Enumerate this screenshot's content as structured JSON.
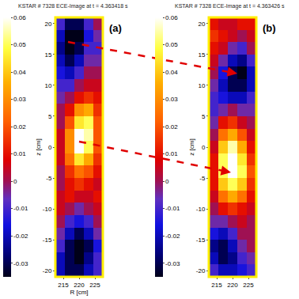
{
  "chart_data": [
    {
      "type": "heatmap",
      "title": "KSTAR # 7328 ECE-Image at t = 4.363418 s",
      "xlabel": "R [cm]",
      "ylabel": "z [cm]",
      "annotations": [
        "(a)"
      ],
      "x": [
        214,
        217,
        220,
        223,
        226
      ],
      "y": [
        -20,
        -18,
        -16,
        -14,
        -12,
        -10,
        -8,
        -6,
        -4,
        -2,
        0,
        2,
        4,
        6,
        8,
        10,
        12,
        14,
        16,
        18,
        20
      ],
      "cells": [
        [
          -0.02,
          -0.03,
          -0.03,
          -0.02,
          -0.01
        ],
        [
          -0.02,
          -0.03,
          -0.035,
          -0.025,
          -0.01
        ],
        [
          -0.01,
          -0.03,
          -0.035,
          -0.03,
          -0.015
        ],
        [
          -0.005,
          -0.02,
          -0.03,
          -0.02,
          -0.005
        ],
        [
          0.0,
          -0.01,
          -0.015,
          -0.01,
          0.0
        ],
        [
          0.005,
          0.0,
          -0.005,
          0.0,
          0.005
        ],
        [
          0.005,
          0.01,
          0.005,
          0.005,
          0.01
        ],
        [
          0.0,
          0.01,
          0.015,
          0.01,
          0.005
        ],
        [
          0.0,
          0.015,
          0.025,
          0.02,
          0.01
        ],
        [
          0.005,
          0.025,
          0.045,
          0.035,
          0.015
        ],
        [
          0.005,
          0.03,
          0.06,
          0.05,
          0.02
        ],
        [
          0.005,
          0.03,
          0.06,
          0.055,
          0.02
        ],
        [
          0.0,
          0.02,
          0.045,
          0.05,
          0.02
        ],
        [
          0.0,
          0.01,
          0.03,
          0.035,
          0.015
        ],
        [
          -0.005,
          0.0,
          0.01,
          0.015,
          0.01
        ],
        [
          -0.01,
          -0.01,
          0.0,
          0.005,
          0.005
        ],
        [
          -0.015,
          -0.02,
          -0.01,
          0.0,
          0.0
        ],
        [
          -0.02,
          -0.03,
          -0.02,
          -0.005,
          -0.005
        ],
        [
          -0.025,
          -0.035,
          -0.03,
          -0.01,
          -0.01
        ],
        [
          -0.02,
          -0.035,
          -0.035,
          -0.015,
          -0.005
        ],
        [
          -0.01,
          -0.03,
          -0.03,
          -0.01,
          0.0
        ]
      ],
      "xlim": [
        212.5,
        227.5
      ],
      "xticks": [
        215,
        220,
        225
      ],
      "ylim": [
        -21,
        21
      ],
      "yticks": [
        -20,
        -15,
        -10,
        -5,
        0,
        5,
        10,
        15,
        20
      ],
      "colorbar": {
        "range": [
          -0.035,
          0.06
        ],
        "ticks": [
          -0.03,
          -0.02,
          -0.01,
          0,
          0.01,
          0.02,
          0.03,
          0.04,
          0.05,
          0.06
        ]
      }
    },
    {
      "type": "heatmap",
      "title": "KSTAR # 7328 ECE-Image at t = 4.363426 s",
      "ylabel": "z [cm]",
      "annotations": [
        "(b)"
      ],
      "x": [
        214,
        217,
        220,
        223,
        226
      ],
      "y": [
        -20,
        -18,
        -16,
        -14,
        -12,
        -10,
        -8,
        -6,
        -4,
        -2,
        0,
        2,
        4,
        6,
        8,
        10,
        12,
        14,
        16,
        18,
        20
      ],
      "cells": [
        [
          -0.01,
          -0.02,
          -0.02,
          -0.015,
          -0.01
        ],
        [
          -0.02,
          -0.03,
          -0.025,
          -0.01,
          -0.005
        ],
        [
          -0.025,
          -0.03,
          -0.02,
          -0.005,
          0.0
        ],
        [
          -0.015,
          -0.02,
          -0.01,
          0.0,
          0.0
        ],
        [
          -0.005,
          -0.005,
          0.0,
          0.005,
          0.0
        ],
        [
          0.0,
          0.01,
          0.015,
          0.01,
          0.005
        ],
        [
          0.005,
          0.025,
          0.035,
          0.025,
          0.01
        ],
        [
          0.01,
          0.04,
          0.05,
          0.04,
          0.015
        ],
        [
          0.01,
          0.05,
          0.06,
          0.05,
          0.02
        ],
        [
          0.01,
          0.05,
          0.06,
          0.045,
          0.015
        ],
        [
          0.005,
          0.04,
          0.055,
          0.035,
          0.01
        ],
        [
          0.0,
          0.025,
          0.035,
          0.02,
          0.005
        ],
        [
          -0.005,
          0.01,
          0.015,
          0.005,
          0.0
        ],
        [
          -0.01,
          -0.005,
          0.0,
          -0.005,
          -0.005
        ],
        [
          -0.01,
          -0.015,
          -0.02,
          -0.02,
          -0.01
        ],
        [
          -0.005,
          -0.02,
          -0.03,
          -0.03,
          -0.02
        ],
        [
          0.0,
          -0.015,
          -0.03,
          -0.035,
          -0.02
        ],
        [
          0.005,
          -0.005,
          -0.02,
          -0.025,
          -0.01
        ],
        [
          0.01,
          0.005,
          -0.005,
          -0.01,
          0.0
        ],
        [
          0.015,
          0.01,
          0.005,
          0.0,
          0.005
        ],
        [
          0.01,
          0.005,
          0.005,
          0.01,
          0.01
        ]
      ],
      "xlim": [
        212.5,
        227.5
      ],
      "xticks": [
        215,
        220,
        225
      ],
      "ylim": [
        -21,
        21
      ],
      "yticks": [
        -20,
        -15,
        -10,
        -5,
        0,
        5,
        10,
        15,
        20
      ],
      "colorbar": {
        "range": [
          -0.035,
          0.06
        ],
        "ticks": [
          -0.03,
          -0.02,
          -0.01,
          0,
          0.01,
          0.02,
          0.03,
          0.04,
          0.05,
          0.06
        ]
      }
    }
  ]
}
